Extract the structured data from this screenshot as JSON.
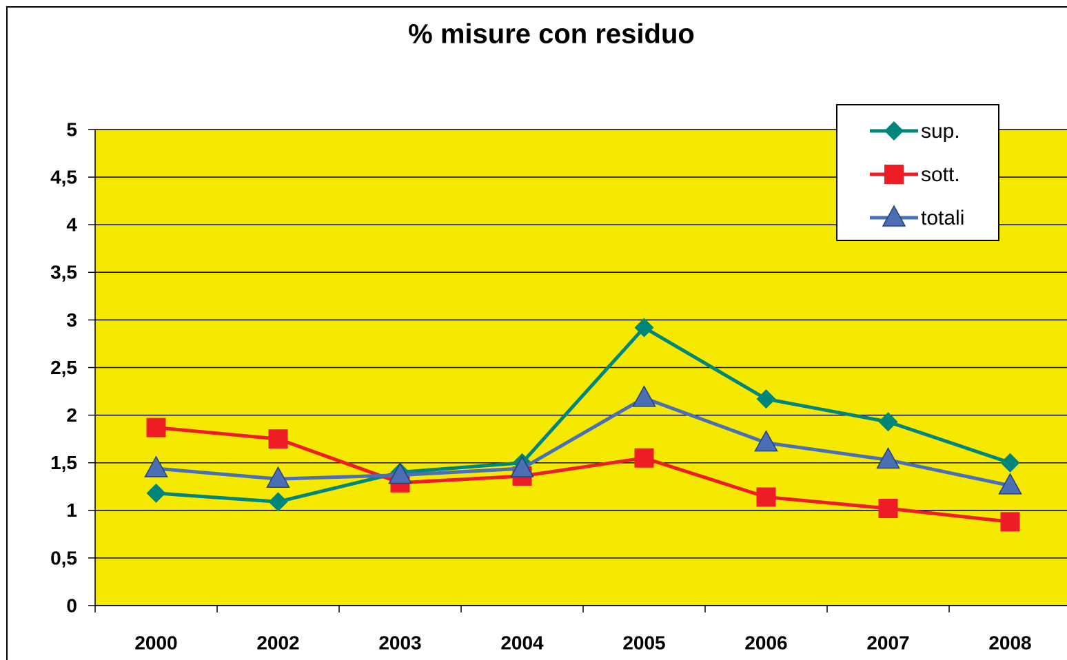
{
  "chart_data": {
    "type": "line",
    "title": "% misure con residuo",
    "categories": [
      "2000",
      "2002",
      "2003",
      "2004",
      "2005",
      "2006",
      "2007",
      "2008"
    ],
    "series": [
      {
        "name": "sup.",
        "color": "#00857a",
        "marker": "diamond",
        "values": [
          1.18,
          1.09,
          1.4,
          1.5,
          2.92,
          2.17,
          1.93,
          1.5
        ]
      },
      {
        "name": "sott.",
        "color": "#ee1c25",
        "marker": "square",
        "values": [
          1.87,
          1.75,
          1.29,
          1.36,
          1.55,
          1.14,
          1.02,
          0.88
        ]
      },
      {
        "name": "totali",
        "color": "#4a6fb5",
        "marker": "triangle",
        "values": [
          1.44,
          1.33,
          1.37,
          1.44,
          2.18,
          1.71,
          1.53,
          1.26
        ]
      }
    ],
    "ylim": [
      0,
      5
    ],
    "yticks": [
      0,
      {
        "value": 0.5,
        "label": "0,5"
      },
      1,
      {
        "value": 1.5,
        "label": "1,5"
      },
      2,
      {
        "value": 2.5,
        "label": "2,5"
      },
      3,
      {
        "value": 3.5,
        "label": "3,5"
      },
      4,
      {
        "value": 4.5,
        "label": "4,5"
      },
      5
    ],
    "grid": true,
    "plot_background": "#f5e900",
    "legend": "top-right"
  }
}
